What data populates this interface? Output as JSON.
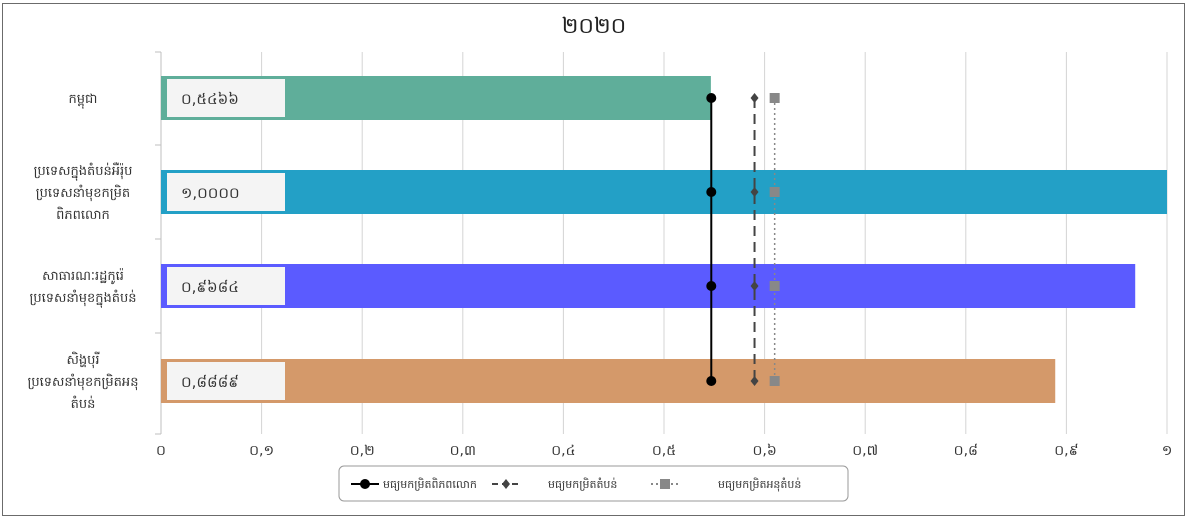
{
  "chart_data": {
    "type": "bar",
    "orientation": "horizontal",
    "title": "២០២០",
    "categories": [
      [
        "កម្ពុជា"
      ],
      [
        "ប្រទេសក្នុងតំបន់អឺរ៉ុប",
        "ប្រទេសនាំមុខកម្រិត",
        "ពិភពលោក"
      ],
      [
        "សាធារណៈរដ្ឋកូរ៉េ",
        "ប្រទេសនាំមុខក្នុងតំបន់"
      ],
      [
        "សិង្ហបុរី",
        "ប្រទេសនាំមុខកម្រិតអនុ",
        "តំបន់"
      ]
    ],
    "values": [
      0.5466,
      1.0,
      0.9684,
      0.8889
    ],
    "value_labels": [
      "០,៥៤៦៦",
      "១,០០០០",
      "០,៩៦៨៤",
      "០,៨៨៨៩"
    ],
    "bar_colors": [
      "#5fae9a",
      "#23a0c6",
      "#5b5bff",
      "#d4996a"
    ],
    "xlim": [
      0,
      1
    ],
    "xticks": [
      0,
      0.1,
      0.2,
      0.3,
      0.4,
      0.5,
      0.6,
      0.7,
      0.8,
      0.9,
      1
    ],
    "xtick_labels": [
      "០",
      "០,១",
      "០,២",
      "០,៣",
      "០,៤",
      "០,៥",
      "០,៦",
      "០,៧",
      "០,៨",
      "០,៩",
      "១"
    ],
    "grid": true,
    "legend_position": "bottom",
    "reference_series": [
      {
        "name": "មធ្យមកម្រិតពិភពលោក",
        "value": 0.547,
        "marker": "circle",
        "line": "solid",
        "color": "#000000"
      },
      {
        "name": "មធ្យមកម្រិតតំបន់",
        "value": 0.59,
        "marker": "diamond",
        "line": "dashed",
        "color": "#444444"
      },
      {
        "name": "មធ្យមកម្រិតអនុតំបន់",
        "value": 0.61,
        "marker": "square",
        "line": "dotted",
        "color": "#888888"
      }
    ]
  }
}
